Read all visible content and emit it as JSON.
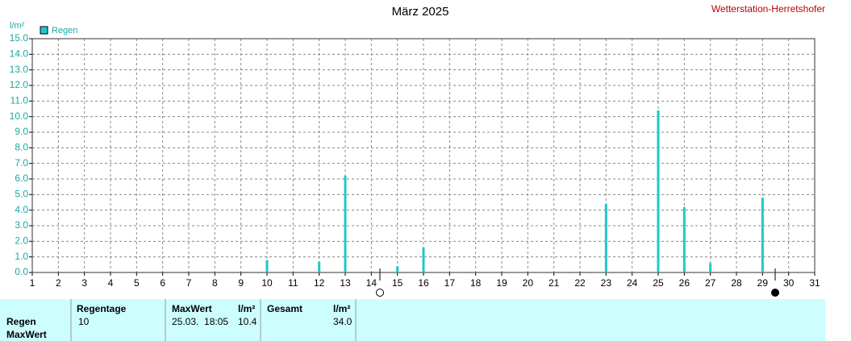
{
  "chart_data": {
    "type": "bar",
    "title": "März 2025",
    "source": "Wetterstation-Herretshofer",
    "y_unit": "l/m²",
    "x": [
      10,
      12,
      13,
      15,
      16,
      23,
      25,
      26,
      27,
      29
    ],
    "series": [
      {
        "name": "Regen",
        "color": "#1ec8c8",
        "values": [
          0.8,
          0.7,
          6.2,
          0.4,
          1.6,
          4.4,
          10.4,
          4.2,
          0.6,
          4.8
        ]
      }
    ],
    "xlim": [
      1,
      31
    ],
    "xticks": [
      1,
      2,
      3,
      4,
      5,
      6,
      7,
      8,
      9,
      10,
      11,
      12,
      13,
      14,
      15,
      16,
      17,
      18,
      19,
      20,
      21,
      22,
      23,
      24,
      25,
      26,
      27,
      28,
      29,
      30,
      31
    ],
    "ylim": [
      0,
      15
    ],
    "yticks": [
      {
        "value": 0,
        "label": "0.0"
      },
      {
        "value": 1,
        "label": "1.0"
      },
      {
        "value": 2,
        "label": "2.0"
      },
      {
        "value": 3,
        "label": "3.0"
      },
      {
        "value": 4,
        "label": "4.0"
      },
      {
        "value": 5,
        "label": "5.0"
      },
      {
        "value": 6,
        "label": "6.0"
      },
      {
        "value": 7,
        "label": "7.0"
      },
      {
        "value": 8,
        "label": "8.0"
      },
      {
        "value": 9,
        "label": "9.0"
      },
      {
        "value": 10,
        "label": "10.0"
      },
      {
        "value": 11,
        "label": "11.0"
      },
      {
        "value": 12,
        "label": "12.0"
      },
      {
        "value": 13,
        "label": "13.0"
      },
      {
        "value": 14,
        "label": "14.0"
      },
      {
        "value": 15,
        "label": "15.0"
      }
    ],
    "grid": true
  },
  "table": {
    "header": [
      "Regentage",
      "MaxWert",
      "l/m²",
      "Gesamt",
      "l/m²"
    ],
    "rows": [
      [
        "Regen",
        "10",
        "25.03.  18:05",
        "10.4",
        "34.0"
      ],
      [
        "MaxWert"
      ]
    ]
  }
}
